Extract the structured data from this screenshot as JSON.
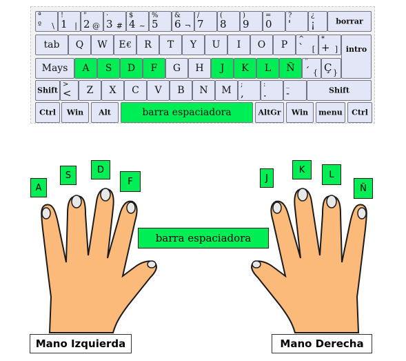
{
  "keyboard": {
    "row1": [
      {
        "top": "ª",
        "bot": "º",
        "alt": "\\"
      },
      {
        "top": "!",
        "bot": "1",
        "alt": "|"
      },
      {
        "top": "\"",
        "bot": "2",
        "alt": "@"
      },
      {
        "top": "·",
        "bot": "3",
        "alt": "#"
      },
      {
        "top": "$",
        "bot": "4",
        "alt": "~"
      },
      {
        "top": "%",
        "bot": "5"
      },
      {
        "top": "&",
        "bot": "6",
        "alt": "¬"
      },
      {
        "top": "/",
        "bot": "7"
      },
      {
        "top": "(",
        "bot": "8"
      },
      {
        "top": ")",
        "bot": "9"
      },
      {
        "top": "=",
        "bot": "0"
      },
      {
        "top": "?",
        "bot": "'"
      },
      {
        "top": "¿",
        "bot": "¡"
      }
    ],
    "borrar": "borrar",
    "tab": "tab",
    "row2": [
      {
        "main": "Q"
      },
      {
        "main": "W"
      },
      {
        "main": "E",
        "alt": "€"
      },
      {
        "main": "R"
      },
      {
        "main": "T"
      },
      {
        "main": "Y"
      },
      {
        "main": "U"
      },
      {
        "main": "I"
      },
      {
        "main": "O"
      },
      {
        "main": "P"
      },
      {
        "top": "^",
        "bot": "`",
        "alt": "["
      },
      {
        "top": "*",
        "bot": "+",
        "alt": "]"
      }
    ],
    "intro": "intro",
    "mays": "Mays",
    "row3": [
      {
        "main": "A",
        "home": true
      },
      {
        "main": "S",
        "home": true
      },
      {
        "main": "D",
        "home": true
      },
      {
        "main": "F",
        "home": true
      },
      {
        "main": "G"
      },
      {
        "main": "H"
      },
      {
        "main": "J",
        "home": true
      },
      {
        "main": "K",
        "home": true
      },
      {
        "main": "L",
        "home": true
      },
      {
        "main": "Ñ",
        "home": true
      },
      {
        "top": "¨",
        "bot": "´",
        "alt": "{"
      },
      {
        "bot": "Ç",
        "alt": "}"
      }
    ],
    "shift_left": "Shift",
    "row4": [
      {
        "top": ">",
        "bot": "<"
      },
      {
        "main": "Z"
      },
      {
        "main": "X"
      },
      {
        "main": "C"
      },
      {
        "main": "V"
      },
      {
        "main": "B"
      },
      {
        "main": "N"
      },
      {
        "main": "M"
      },
      {
        "top": ";",
        "bot": ","
      },
      {
        "top": ":",
        "bot": "."
      },
      {
        "top": "_",
        "bot": "-"
      }
    ],
    "shift_right": "Shift",
    "row5": {
      "ctrl_left": "Ctrl",
      "win_left": "Win",
      "alt": "Alt",
      "space": "barra espaciadora",
      "altgr": "AltGr",
      "win_right": "Win",
      "menu": "menu",
      "ctrl_right": "Ctrl"
    }
  },
  "fingers": {
    "left": [
      "A",
      "S",
      "D",
      "F"
    ],
    "right": [
      "J",
      "K",
      "L",
      "Ñ"
    ]
  },
  "space_label": "barra espaciadora",
  "hands": {
    "left_name": "Mano Izquierda",
    "right_name": "Mano Derecha"
  },
  "colors": {
    "home_key": "#00ee55",
    "key_fill": "#e3e6f6",
    "skin": "#fbb97a",
    "outline": "#1a1a1a"
  }
}
